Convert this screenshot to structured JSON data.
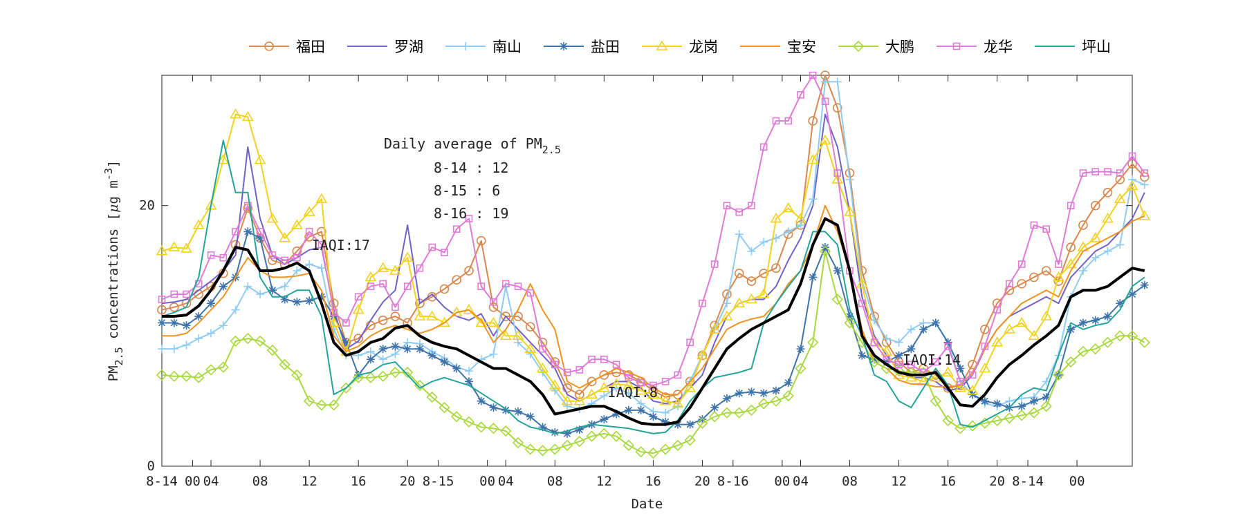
{
  "chart_data": {
    "type": "line",
    "xlabel": "Date",
    "ylabel": {
      "base": "PM",
      "sub": "2.5",
      "rest": " concentrations [",
      "mu": "μ",
      "unit": "g m",
      "sup": "-3",
      "close": "]"
    },
    "ylim": [
      0,
      30
    ],
    "xlim": [
      0,
      79
    ],
    "grid": false,
    "legend_position": "top",
    "y_ticks": [
      0,
      20
    ],
    "x_ticks": [
      {
        "x": 0,
        "label": "8-14"
      },
      {
        "x": 2.5,
        "label": "00"
      },
      {
        "x": 4,
        "label": "04"
      },
      {
        "x": 8,
        "label": "08"
      },
      {
        "x": 12,
        "label": "12"
      },
      {
        "x": 16,
        "label": "16"
      },
      {
        "x": 20,
        "label": "20"
      },
      {
        "x": 22.5,
        "label": "8-15"
      },
      {
        "x": 26.5,
        "label": "00"
      },
      {
        "x": 28,
        "label": "04"
      },
      {
        "x": 32,
        "label": "08"
      },
      {
        "x": 36,
        "label": "12"
      },
      {
        "x": 40,
        "label": "16"
      },
      {
        "x": 44,
        "label": "20"
      },
      {
        "x": 46.5,
        "label": "8-16"
      },
      {
        "x": 50.5,
        "label": "00"
      },
      {
        "x": 52,
        "label": "04"
      },
      {
        "x": 56,
        "label": "08"
      },
      {
        "x": 60,
        "label": "12"
      },
      {
        "x": 64,
        "label": "16"
      },
      {
        "x": 68,
        "label": "20"
      },
      {
        "x": 70.5,
        "label": "8-14"
      },
      {
        "x": 74.5,
        "label": "00"
      }
    ],
    "annotations": [
      {
        "text": "IAQI:17",
        "x": 12.2,
        "y": 16.6
      },
      {
        "text": "IAQI:8",
        "x": 36.3,
        "y": 5.3
      },
      {
        "text": "IAQI:14",
        "x": 60.3,
        "y": 7.8
      }
    ],
    "daily_average": {
      "title_base": "Daily average of PM",
      "title_sub": "2.5",
      "rows": [
        "8-14 : 12",
        "8-15 : 6",
        "8-16 : 19"
      ]
    },
    "series": [
      {
        "name": "福田",
        "color": "#D9874B",
        "marker": "circle",
        "values": [
          12,
          12.2,
          12.5,
          13.2,
          13.8,
          14.8,
          17,
          19.8,
          17.5,
          15.8,
          15.5,
          16.5,
          17.6,
          18,
          12.5,
          9.5,
          9.8,
          10.8,
          11.2,
          11.5,
          11,
          12.5,
          13,
          13.6,
          14.3,
          15,
          17.3,
          12.2,
          11.5,
          11.5,
          10.7,
          9.5,
          8,
          6,
          5.5,
          6.5,
          7,
          7.2,
          7,
          6.5,
          5.8,
          5.3,
          5.5,
          6.5,
          8.5,
          10.8,
          13.2,
          14.8,
          14.2,
          14.8,
          15.2,
          17.8,
          18.5,
          26.5,
          30,
          27.5,
          22.5,
          15,
          11.5,
          9.5,
          8,
          7.2,
          7.5,
          7,
          6,
          6.2,
          7.8,
          10.5,
          12.5,
          13.5,
          14,
          14.5,
          15,
          14.2,
          16.8,
          18.5,
          20,
          21,
          22,
          23.2,
          22.2
        ]
      },
      {
        "name": "罗湖",
        "color": "#7060CC",
        "marker": "none",
        "values": [
          12.5,
          12.6,
          12.8,
          13.5,
          14.2,
          15,
          16.2,
          24.5,
          19,
          16.2,
          15.5,
          16,
          16.6,
          16.8,
          12,
          9,
          9.6,
          11.2,
          12.6,
          13.5,
          18.5,
          12.5,
          13.2,
          12.2,
          11.5,
          11.2,
          11.7,
          10,
          11.5,
          10.5,
          9.5,
          8.5,
          7.5,
          5.5,
          5,
          5.5,
          6,
          6.5,
          6.5,
          6,
          5,
          4.8,
          5,
          6,
          7,
          9.5,
          11.5,
          12.5,
          12.8,
          12.8,
          13.8,
          15.8,
          17.5,
          20,
          27,
          24.5,
          19.5,
          13,
          10,
          8.5,
          7.3,
          6.8,
          6.8,
          6.5,
          5.8,
          6,
          7,
          9,
          10.5,
          11.5,
          12,
          12.5,
          13,
          12.5,
          14.5,
          15.5,
          16.5,
          17,
          18,
          19,
          21
        ]
      },
      {
        "name": "南山",
        "color": "#8FCBF2",
        "marker": "plus",
        "values": [
          9,
          9,
          9.3,
          9.8,
          10.2,
          10.8,
          12,
          13.8,
          13.2,
          13.5,
          13.8,
          15,
          15.5,
          15.2,
          10.5,
          8.5,
          8.5,
          8.8,
          8.2,
          8.6,
          9.5,
          9.4,
          8.8,
          8.3,
          7.6,
          7.3,
          8.2,
          8.6,
          13.8,
          9.5,
          8.6,
          7.2,
          5.8,
          4.6,
          4.4,
          4.8,
          5.4,
          6,
          5.6,
          4.8,
          4.2,
          4.1,
          4.6,
          6.5,
          8.5,
          10.5,
          12.5,
          17.8,
          16.5,
          17.2,
          17.5,
          18,
          18.5,
          20.5,
          29.5,
          29.5,
          22,
          14.2,
          11.2,
          9.8,
          9.5,
          10.5,
          11,
          11,
          9.5,
          6.5,
          5.5,
          4.8,
          4.6,
          5,
          5.2,
          5.3,
          6.5,
          8.5,
          13,
          15,
          16,
          16.5,
          17,
          22,
          21.6
        ]
      },
      {
        "name": "盐田",
        "color": "#3E73AA",
        "marker": "star",
        "values": [
          11,
          11,
          10.8,
          11.5,
          12.5,
          13.8,
          14.5,
          18,
          17.5,
          13.5,
          12.8,
          12.6,
          12.7,
          13,
          11.5,
          9.5,
          7,
          8.2,
          9,
          9.2,
          9,
          9,
          8.5,
          8,
          7.5,
          6.5,
          5,
          4.5,
          4.3,
          4.2,
          3.8,
          3,
          2.6,
          2.5,
          2.8,
          3.2,
          3.6,
          4,
          4.3,
          4.3,
          3.8,
          3.4,
          3.2,
          3.2,
          3.6,
          4.5,
          5.2,
          5.6,
          5.7,
          5.6,
          5.8,
          6.4,
          9,
          14.5,
          16.8,
          15,
          11.5,
          8.5,
          8.2,
          8,
          8.5,
          9,
          10.5,
          11,
          9.5,
          7.5,
          5.5,
          5,
          4.8,
          4.5,
          4.6,
          5,
          5.3,
          7,
          10.5,
          11,
          11.2,
          11.5,
          12.5,
          13.2,
          13.9
        ]
      },
      {
        "name": "龙岗",
        "color": "#F2D21E",
        "marker": "triangle",
        "values": [
          16.5,
          16.8,
          16.7,
          18.5,
          20,
          23.5,
          27,
          26.8,
          23.5,
          19,
          17.5,
          18.5,
          19.5,
          20.5,
          11,
          8.8,
          12,
          14.5,
          15.2,
          15,
          16,
          11.5,
          11.5,
          11,
          11.8,
          12,
          11,
          11,
          10,
          10,
          9,
          7.5,
          6.2,
          5,
          5,
          5.5,
          6,
          6.3,
          6.2,
          5.8,
          5.5,
          5,
          4.8,
          6,
          8.5,
          10.5,
          11.5,
          12.5,
          12.8,
          13.2,
          19,
          19.8,
          19,
          23.5,
          25,
          22,
          19.5,
          14,
          9.5,
          8.8,
          7,
          6.8,
          6.5,
          6.8,
          7.2,
          6,
          5.8,
          7.5,
          9.5,
          10.5,
          11,
          10,
          11.5,
          14.5,
          15.5,
          16.8,
          17.5,
          19,
          20.5,
          21.5,
          19.2
        ]
      },
      {
        "name": "宝安",
        "color": "#F0921E",
        "marker": "none",
        "values": [
          10,
          10,
          10.2,
          11,
          12,
          13,
          14.5,
          16,
          15,
          14.5,
          14.5,
          14.6,
          14.8,
          13.5,
          10,
          8.8,
          9.2,
          10,
          10.5,
          10.8,
          10.5,
          10.2,
          10.5,
          11,
          11.8,
          12,
          11.2,
          9.5,
          10.5,
          12,
          14,
          12,
          10.5,
          6.5,
          6,
          6.5,
          7,
          7.5,
          7.2,
          6.8,
          6,
          5.5,
          5.5,
          6.5,
          7.5,
          9,
          10.5,
          11,
          11.3,
          11.5,
          12.5,
          14,
          15,
          17,
          20,
          18,
          15,
          10.5,
          8,
          7.5,
          6.6,
          6.3,
          6.3,
          6.1,
          6.1,
          6.2,
          7.2,
          9,
          10.5,
          11.5,
          12.5,
          13,
          13.5,
          13,
          15,
          16.5,
          17,
          17.5,
          18,
          18.8,
          19.2
        ]
      },
      {
        "name": "大鹏",
        "color": "#A8D83C",
        "marker": "diamond",
        "values": [
          7,
          6.9,
          6.9,
          6.8,
          7.4,
          7.6,
          9.6,
          9.8,
          9.6,
          8.9,
          7.8,
          7,
          5,
          4.7,
          4.7,
          6,
          6.8,
          6.8,
          6.9,
          7.2,
          7.2,
          6.2,
          5.3,
          4.5,
          3.8,
          3.4,
          3,
          2.9,
          2.7,
          1.8,
          1.3,
          1.2,
          1.3,
          1.6,
          1.9,
          2.3,
          2.5,
          2.3,
          1.6,
          1.1,
          1,
          1.3,
          1.6,
          2,
          3.3,
          3.8,
          4.1,
          4.1,
          4.3,
          4.8,
          5,
          5.4,
          7.5,
          9.5,
          16.5,
          12.8,
          11,
          9.5,
          8,
          7.5,
          7.3,
          7.2,
          7.2,
          5,
          3.5,
          2.9,
          3.1,
          3.3,
          3.5,
          3.7,
          3.9,
          4.1,
          4.6,
          7,
          8,
          8.8,
          9,
          9.5,
          10,
          10,
          9.5
        ]
      },
      {
        "name": "龙华",
        "color": "#E07AD6",
        "marker": "square",
        "values": [
          12.8,
          13.2,
          13.2,
          14,
          16.2,
          16,
          18,
          20,
          18,
          16.2,
          15.8,
          16,
          18,
          17,
          11.8,
          11,
          13,
          13.8,
          14,
          12.2,
          13.8,
          15.2,
          16.8,
          16.4,
          18.2,
          19,
          13.8,
          12.6,
          14,
          13.8,
          13.3,
          9,
          7.8,
          7.2,
          7.4,
          8.2,
          8.2,
          7.8,
          6.8,
          6.4,
          6.2,
          6.5,
          7,
          9.5,
          12.5,
          15.5,
          20,
          19.5,
          20,
          24.5,
          26.5,
          26.5,
          28.5,
          30,
          28,
          22.5,
          15,
          12.5,
          9.5,
          8.2,
          7.8,
          7.8,
          7.2,
          8,
          9.2,
          6.5,
          7,
          9.2,
          12,
          14,
          15.5,
          18.5,
          18.2,
          15.5,
          20,
          22.5,
          22.6,
          22.6,
          22.5,
          23.8,
          22.5
        ]
      },
      {
        "name": "坪山",
        "color": "#23A39A",
        "marker": "none",
        "values": [
          11.5,
          11.8,
          12.2,
          14.5,
          20,
          25,
          21,
          21,
          14.5,
          13,
          13,
          13.5,
          13.5,
          11.5,
          5.5,
          6,
          7,
          7.2,
          7.8,
          8,
          7,
          6,
          6.5,
          6.8,
          6.5,
          6.2,
          5.6,
          5,
          4.4,
          3.5,
          3,
          2.8,
          2.5,
          2.7,
          3,
          3.2,
          3.1,
          3,
          2.9,
          2.7,
          2.5,
          2.6,
          3.5,
          5,
          6,
          6.8,
          7,
          7.2,
          7.5,
          11,
          12.5,
          13.8,
          15,
          18,
          18,
          17,
          12,
          10,
          7,
          6.5,
          5,
          4.5,
          6,
          7.5,
          6.2,
          3.2,
          3,
          3.5,
          4,
          4.5,
          5.5,
          6,
          5.8,
          8.5,
          11,
          10.5,
          10.8,
          11,
          12,
          13.8,
          14.5
        ]
      },
      {
        "name": "",
        "color": "#000000",
        "marker": "none",
        "values": [
          11.5,
          11.5,
          11.6,
          12.3,
          13.5,
          15,
          16.8,
          16.6,
          15,
          15,
          15.2,
          15.6,
          15,
          12.5,
          9.5,
          8.5,
          8.8,
          9.5,
          9.8,
          10.6,
          10.8,
          10,
          9.5,
          9.2,
          9,
          8.5,
          8,
          7.5,
          7.5,
          7,
          6.5,
          5.5,
          4,
          4.2,
          4.4,
          4.6,
          4.6,
          4.2,
          3.7,
          3.3,
          3.2,
          3.2,
          3.4,
          4.5,
          6,
          7.5,
          9,
          9.8,
          10.5,
          11,
          11.5,
          12,
          14,
          17,
          19,
          18.5,
          15,
          10,
          8.5,
          7.8,
          7.2,
          7,
          7,
          7.2,
          6,
          4.7,
          4.6,
          5.5,
          6.8,
          7.8,
          8.5,
          9.3,
          10,
          10.8,
          13,
          13.5,
          13.5,
          13.8,
          14.5,
          15.2,
          15
        ]
      }
    ]
  }
}
